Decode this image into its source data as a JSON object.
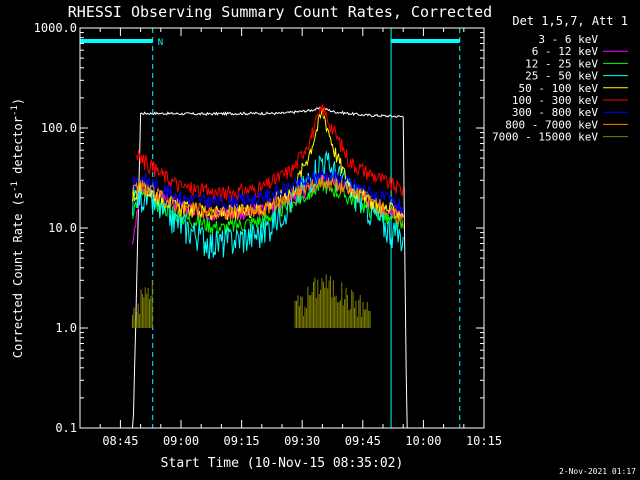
{
  "chart_data": {
    "type": "line",
    "title": "RHESSI Observing Summary Count Rates, Corrected",
    "xlabel": "Start Time (10-Nov-15 08:35:02)",
    "ylabel_main": "Corrected Count Rate (s",
    "ylabel_sup": "-1",
    "ylabel_mid": " detector",
    "ylabel_end": ")",
    "y_scale": "log",
    "ylim": [
      0.1,
      1000
    ],
    "xlim": [
      "08:35",
      "10:15"
    ],
    "x_ticks": [
      "08:45",
      "09:00",
      "09:15",
      "09:30",
      "09:45",
      "10:00",
      "10:15"
    ],
    "y_ticks": [
      "0.1",
      "1.0",
      "10.0",
      "100.0",
      "1000.0"
    ],
    "legend_header": "Det 1,5,7, Att 1",
    "legend_position": "right",
    "night_marker_label": "N",
    "series": [
      {
        "name": "3 - 6 keV",
        "color": "#000000",
        "x": [
          "08:48",
          "08:50",
          "08:55",
          "09:05",
          "09:15",
          "09:25",
          "09:32",
          "09:35",
          "09:38",
          "09:45",
          "09:55",
          "09:56"
        ],
        "y": [
          0.05,
          140,
          140,
          138,
          140,
          140,
          150,
          158,
          145,
          135,
          130,
          0.05
        ]
      },
      {
        "name": "6 - 12 keV",
        "color": "#ff00ff",
        "x": [
          "08:48",
          "08:50",
          "09:00",
          "09:10",
          "09:20",
          "09:30",
          "09:35",
          "09:40",
          "09:50",
          "09:55"
        ],
        "y": [
          6,
          28,
          16,
          14,
          15,
          22,
          30,
          26,
          16,
          14
        ]
      },
      {
        "name": "12 - 25 keV",
        "color": "#00ff00",
        "x": [
          "08:48",
          "08:50",
          "09:00",
          "09:10",
          "09:20",
          "09:30",
          "09:35",
          "09:40",
          "09:50",
          "09:55"
        ],
        "y": [
          15,
          22,
          13,
          10,
          12,
          20,
          28,
          22,
          13,
          10
        ]
      },
      {
        "name": "25 - 50 keV",
        "color": "#00ffff",
        "x": [
          "08:48",
          "08:50",
          "09:00",
          "09:08",
          "09:20",
          "09:30",
          "09:35",
          "09:40",
          "09:50",
          "09:55"
        ],
        "y": [
          20,
          22,
          11,
          7,
          9,
          25,
          50,
          30,
          11,
          8
        ]
      },
      {
        "name": "50 - 100 keV",
        "color": "#ffff00",
        "x": [
          "08:48",
          "08:50",
          "09:00",
          "09:10",
          "09:20",
          "09:28",
          "09:32",
          "09:35",
          "09:38",
          "09:42",
          "09:50",
          "09:55"
        ],
        "y": [
          20,
          26,
          16,
          14,
          16,
          25,
          60,
          150,
          60,
          25,
          16,
          14
        ]
      },
      {
        "name": "100 - 300 keV",
        "color": "#ff0000",
        "x": [
          "08:49",
          "08:50",
          "08:55",
          "09:00",
          "09:10",
          "09:20",
          "09:28",
          "09:32",
          "09:35",
          "09:38",
          "09:42",
          "09:50",
          "09:55"
        ],
        "y": [
          55,
          50,
          35,
          26,
          22,
          25,
          40,
          80,
          160,
          90,
          45,
          30,
          24
        ]
      },
      {
        "name": "300 - 800 keV",
        "color": "#0000ff",
        "x": [
          "08:48",
          "08:50",
          "09:00",
          "09:10",
          "09:20",
          "09:30",
          "09:35",
          "09:40",
          "09:50",
          "09:55"
        ],
        "y": [
          28,
          32,
          20,
          18,
          20,
          28,
          35,
          30,
          20,
          16
        ]
      },
      {
        "name": "800 - 7000 keV",
        "color": "#ff8000",
        "x": [
          "08:48",
          "08:50",
          "09:00",
          "09:10",
          "09:20",
          "09:30",
          "09:35",
          "09:40",
          "09:50",
          "09:55"
        ],
        "y": [
          22,
          26,
          16,
          14,
          15,
          24,
          30,
          26,
          16,
          12
        ]
      },
      {
        "name": "7000 - 15000 keV",
        "color": "#808000",
        "x": [
          "08:48",
          "08:52",
          "09:30",
          "09:33",
          "09:35",
          "09:40",
          "09:47"
        ],
        "y": [
          1.5,
          2.5,
          1.8,
          2.5,
          3,
          2.2,
          1.5
        ]
      }
    ],
    "vertical_markers": [
      {
        "type": "saa_or_night_start",
        "x": "08:35",
        "style": "solid",
        "color": "#00ffff"
      },
      {
        "type": "night_end",
        "x": "08:53",
        "style": "dashed",
        "color": "#00ffff"
      },
      {
        "type": "night_start",
        "x": "09:52",
        "style": "solid",
        "color": "#00ffff"
      },
      {
        "type": "night_end",
        "x": "10:09",
        "style": "dashed",
        "color": "#00ffff"
      }
    ],
    "night_bars": [
      {
        "x": [
          "08:35",
          "08:53"
        ]
      },
      {
        "x": [
          "09:52",
          "10:09"
        ]
      }
    ]
  },
  "footer": {
    "timestamp": "2-Nov-2021 01:17"
  }
}
